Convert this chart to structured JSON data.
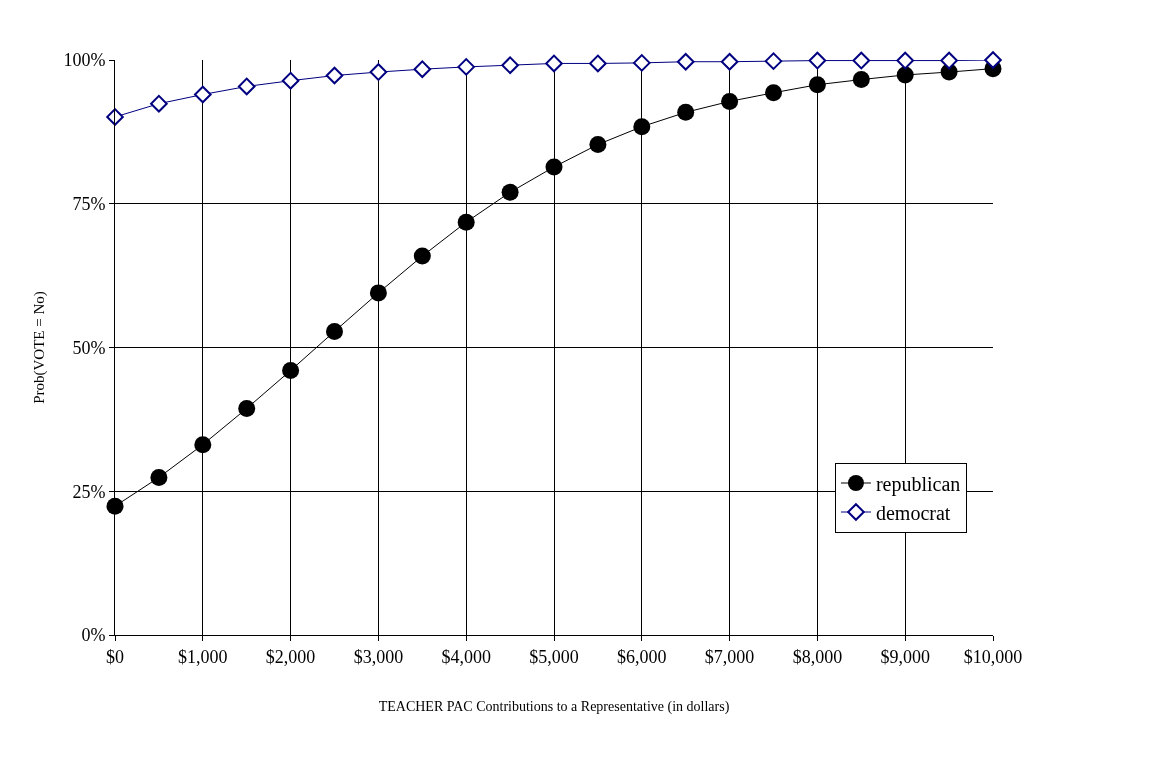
{
  "chart_data": {
    "type": "line",
    "xlabel": "TEACHER PAC Contributions to a Representative (in dollars)",
    "ylabel": "Prob(VOTE = No)",
    "x": [
      0,
      500,
      1000,
      1500,
      2000,
      2500,
      3000,
      3500,
      4000,
      4500,
      5000,
      5500,
      6000,
      6500,
      7000,
      7500,
      8000,
      8500,
      9000,
      9500,
      10000
    ],
    "series": [
      {
        "name": "republican",
        "color": "#000000",
        "marker": "circle",
        "values": [
          22.4,
          27.4,
          33.1,
          39.4,
          46.0,
          52.8,
          59.5,
          65.9,
          71.8,
          77.0,
          81.4,
          85.3,
          88.4,
          90.9,
          92.8,
          94.3,
          95.7,
          96.6,
          97.4,
          97.9,
          98.5
        ]
      },
      {
        "name": "democrat",
        "color": "#000080",
        "marker": "diamond",
        "values": [
          90.1,
          92.4,
          94.0,
          95.4,
          96.4,
          97.3,
          97.9,
          98.4,
          98.8,
          99.1,
          99.4,
          99.4,
          99.5,
          99.7,
          99.7,
          99.8,
          99.9,
          99.9,
          99.9,
          99.9,
          100
        ]
      }
    ],
    "xlim": [
      0,
      10000
    ],
    "xticks": [
      {
        "value": 0,
        "label": "$0"
      },
      {
        "value": 1000,
        "label": "$1,000"
      },
      {
        "value": 2000,
        "label": "$2,000"
      },
      {
        "value": 3000,
        "label": "$3,000"
      },
      {
        "value": 4000,
        "label": "$4,000"
      },
      {
        "value": 5000,
        "label": "$5,000"
      },
      {
        "value": 6000,
        "label": "$6,000"
      },
      {
        "value": 7000,
        "label": "$7,000"
      },
      {
        "value": 8000,
        "label": "$8,000"
      },
      {
        "value": 9000,
        "label": "$9,000"
      },
      {
        "value": 10000,
        "label": "$10,000"
      }
    ],
    "ylim": [
      0,
      100
    ],
    "yticks": [
      {
        "value": 0,
        "label": "0%"
      },
      {
        "value": 25,
        "label": "25%"
      },
      {
        "value": 50,
        "label": "50%"
      },
      {
        "value": 75,
        "label": "75%"
      },
      {
        "value": 100,
        "label": "100%"
      }
    ],
    "grid": true,
    "legend": "right",
    "line_style": "solid"
  }
}
